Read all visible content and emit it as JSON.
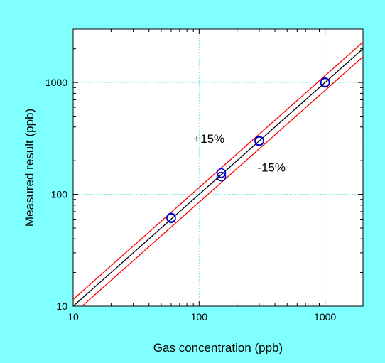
{
  "chart_data": {
    "type": "scatter",
    "x_scale": "log",
    "y_scale": "log",
    "xlabel": "Gas concentration (ppb)",
    "ylabel": "Measured result (ppb)",
    "xlim": [
      10,
      2000
    ],
    "ylim": [
      10,
      3000
    ],
    "xticks": [
      "10",
      "100",
      "1000"
    ],
    "yticks": [
      "10",
      "100",
      "1000"
    ],
    "grid": true,
    "colors": {
      "background": "#80ffff",
      "plot_area": "#ffffff",
      "grid": "#80e6e6",
      "reference_line": "#000000",
      "tolerance_lines": "#ff0000",
      "points": "#0000cc"
    },
    "reference_lines": [
      {
        "factor": 1.0,
        "color": "#000000"
      },
      {
        "factor": 1.15,
        "color": "#ff0000"
      },
      {
        "factor": 0.85,
        "color": "#ff0000"
      }
    ],
    "points": [
      {
        "x": 60,
        "y": 61
      },
      {
        "x": 60,
        "y": 62
      },
      {
        "x": 150,
        "y": 144
      },
      {
        "x": 150,
        "y": 155
      },
      {
        "x": 300,
        "y": 298
      },
      {
        "x": 300,
        "y": 302
      },
      {
        "x": 1000,
        "y": 995
      },
      {
        "x": 1000,
        "y": 1005
      }
    ],
    "annotations": [
      {
        "text": "+15%",
        "x": 90,
        "y": 290
      },
      {
        "text": "-15%",
        "x": 290,
        "y": 160
      }
    ]
  }
}
